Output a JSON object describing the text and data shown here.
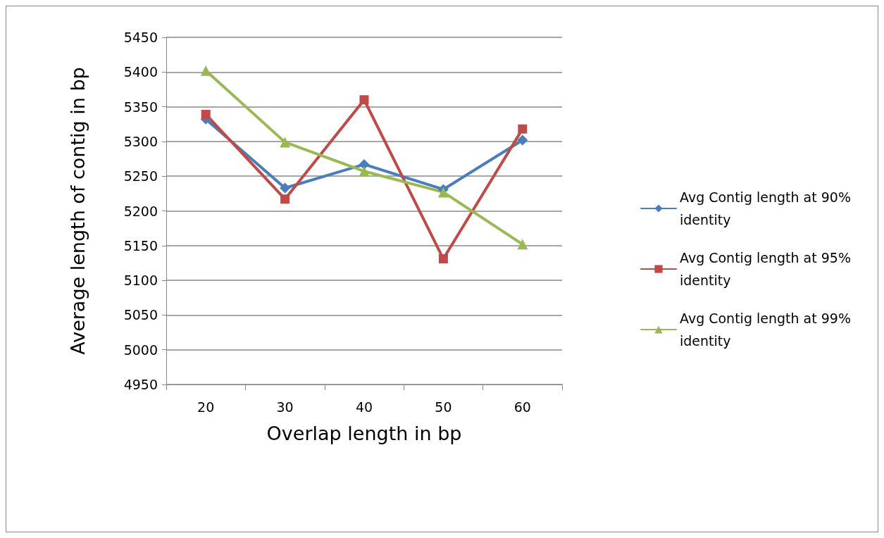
{
  "chart_data": {
    "type": "line",
    "xlabel": "Overlap length in bp",
    "ylabel": "Average length of contig in bp",
    "categories": [
      "20",
      "30",
      "40",
      "50",
      "60"
    ],
    "series": [
      {
        "name": "Avg Contig length at 90% identity",
        "color": "#4a7ebb",
        "marker": "diamond",
        "values": [
          5332,
          5233,
          5267,
          5231,
          5302
        ]
      },
      {
        "name": "Avg Contig length at 95% identity",
        "color": "#be4b48",
        "marker": "square",
        "values": [
          5339,
          5217,
          5360,
          5131,
          5318
        ]
      },
      {
        "name": "Avg Contig length at 99% identity",
        "color": "#98b954",
        "marker": "triangle",
        "values": [
          5402,
          5299,
          5257,
          5227,
          5152
        ]
      }
    ],
    "ylim": [
      4950,
      5450
    ],
    "yticks": [
      4950,
      5000,
      5050,
      5100,
      5150,
      5200,
      5250,
      5300,
      5350,
      5400,
      5450
    ],
    "grid": "y",
    "legend": "right",
    "line_style": "solid"
  }
}
